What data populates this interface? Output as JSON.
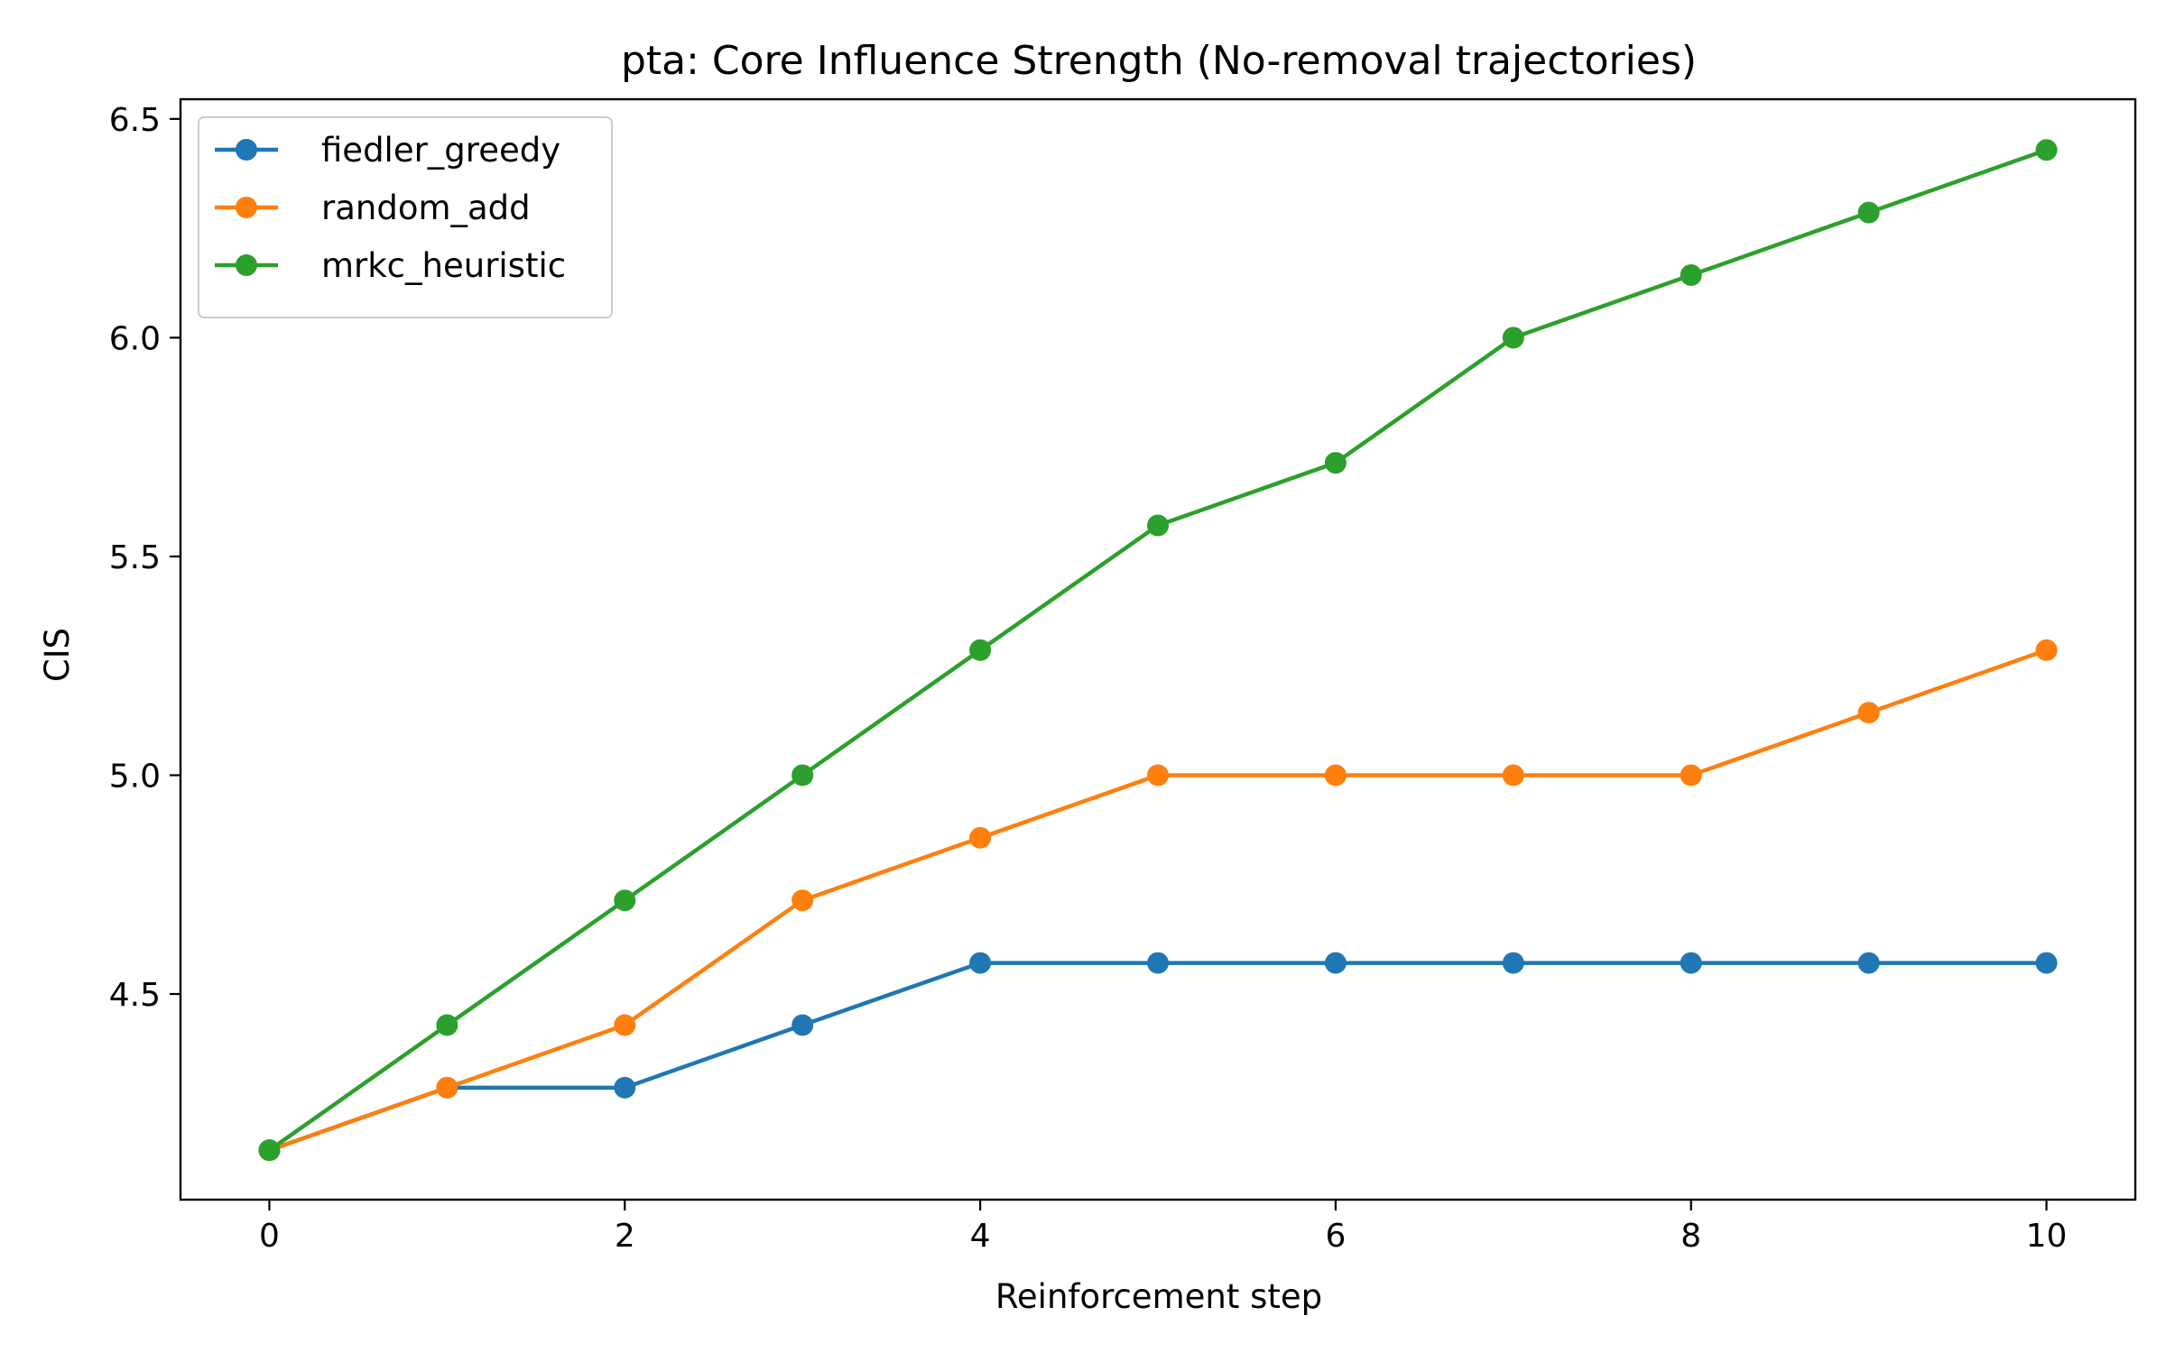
{
  "chart_data": {
    "type": "line",
    "title": "pta: Core Influence Strength (No-removal trajectories)",
    "xlabel": "Reinforcement step",
    "ylabel": "CIS",
    "x": [
      0,
      1,
      2,
      3,
      4,
      5,
      6,
      7,
      8,
      9,
      10
    ],
    "xlim": [
      -0.5,
      10.5
    ],
    "ylim": [
      4.03,
      6.545
    ],
    "xticks": [
      0,
      2,
      4,
      6,
      8,
      10
    ],
    "xtick_labels": [
      "0",
      "2",
      "4",
      "6",
      "8",
      "10"
    ],
    "yticks": [
      4.5,
      5.0,
      5.5,
      6.0,
      6.5
    ],
    "ytick_labels": [
      "4.5",
      "5.0",
      "5.5",
      "6.0",
      "6.5"
    ],
    "grid": false,
    "legend_position": "top-left",
    "series": [
      {
        "name": "fiedler_greedy",
        "color": "#1f77b4",
        "marker": "circle",
        "values": [
          4.143,
          4.286,
          4.286,
          4.429,
          4.571,
          4.571,
          4.571,
          4.571,
          4.571,
          4.571,
          4.571
        ]
      },
      {
        "name": "random_add",
        "color": "#ff7f0e",
        "marker": "circle",
        "values": [
          4.143,
          4.286,
          4.429,
          4.714,
          4.857,
          5.0,
          5.0,
          5.0,
          5.0,
          5.143,
          5.286
        ]
      },
      {
        "name": "mrkc_heuristic",
        "color": "#2ca02c",
        "marker": "circle",
        "values": [
          4.143,
          4.429,
          4.714,
          5.0,
          5.286,
          5.571,
          5.714,
          6.0,
          6.143,
          6.286,
          6.429
        ]
      }
    ]
  }
}
